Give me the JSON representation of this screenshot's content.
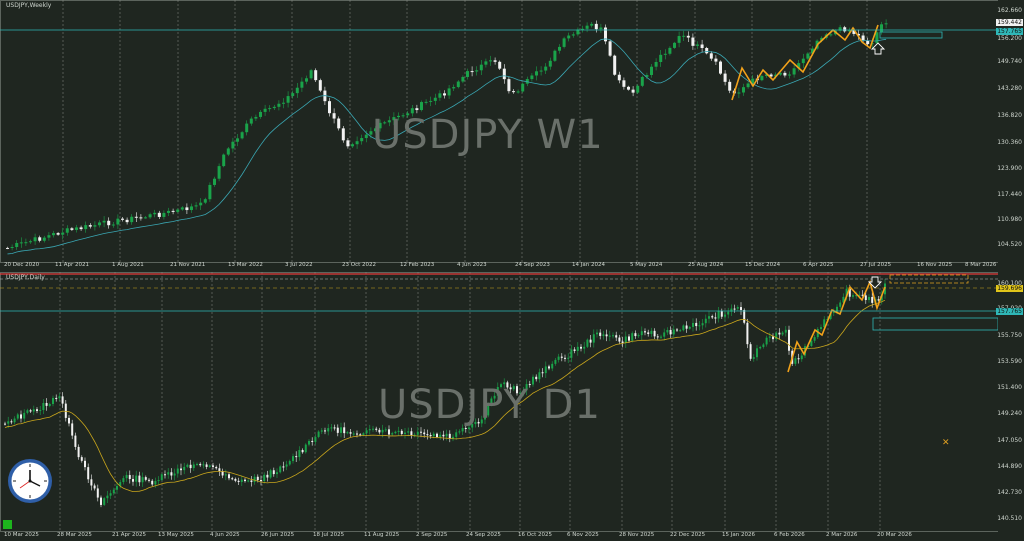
{
  "top": {
    "title": "USDJPY,Weekly",
    "watermark": "USDJPY W1",
    "price_ticks": [
      "162.660",
      "156.200",
      "149.740",
      "143.280",
      "136.820",
      "130.360",
      "123.900",
      "117.440",
      "110.980",
      "104.520"
    ],
    "tag_top": "159.442",
    "tag_cyan": "157.765",
    "date_ticks": [
      "20 Dec 2020",
      "11 Apr 2021",
      "1 Aug 2021",
      "21 Nov 2021",
      "13 Mar 2022",
      "3 Jul 2022",
      "23 Oct 2022",
      "12 Feb 2023",
      "4 Jun 2023",
      "24 Sep 2023",
      "14 Jan 2024",
      "5 May 2024",
      "25 Aug 2024",
      "15 Dec 2024",
      "6 Apr 2025",
      "27 Jul 2025",
      "16 Nov 2025",
      "8 Mar 2026"
    ]
  },
  "bottom": {
    "title": "USDJPY,Daily",
    "watermark": "USDJPY D1",
    "price_ticks": [
      "160.100",
      "157.920",
      "155.750",
      "153.590",
      "151.400",
      "149.240",
      "147.050",
      "144.890",
      "142.730",
      "140.510"
    ],
    "tag_yellow": "159.696",
    "tag_cyan": "157.765",
    "date_ticks": [
      "10 Mar 2025",
      "28 Mar 2025",
      "21 Apr 2025",
      "13 May 2025",
      "4 Jun 2025",
      "26 Jun 2025",
      "18 Jul 2025",
      "11 Aug 2025",
      "2 Sep 2025",
      "24 Sep 2025",
      "16 Oct 2025",
      "6 Nov 2025",
      "28 Nov 2025",
      "22 Dec 2025",
      "15 Jan 2026",
      "6 Feb 2026",
      "2 Mar 2026",
      "20 Mar 2026"
    ]
  },
  "colors": {
    "background": "#1f2620",
    "bull": "#1aa34a",
    "bear": "#f2f2f2",
    "ma_top": "#3aa7b3",
    "ma_bottom": "#c9a61c",
    "zigzag": "#f2a21a",
    "level_line": "#2fb7b7",
    "red_line": "#e23a3a"
  },
  "icons": [
    "clock-icon",
    "down-arrow-icon",
    "up-arrow-icon",
    "green-square-icon"
  ]
}
